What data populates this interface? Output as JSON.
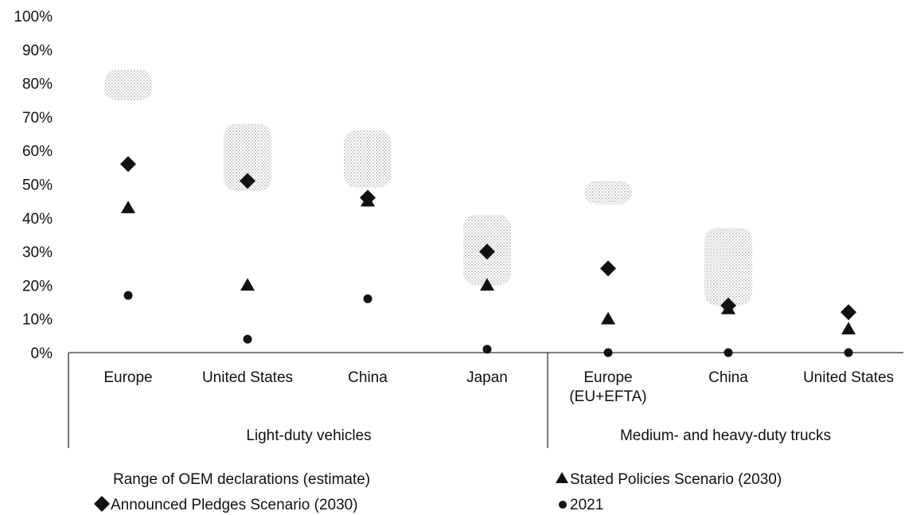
{
  "chart_data": {
    "type": "scatter",
    "yticks": [
      "0%",
      "10%",
      "20%",
      "30%",
      "40%",
      "50%",
      "60%",
      "70%",
      "80%",
      "90%",
      "100%"
    ],
    "ylim": [
      0,
      100
    ],
    "groups": [
      {
        "label": "Light-duty vehicles",
        "categories": [
          "Europe",
          "United States",
          "China",
          "Japan"
        ]
      },
      {
        "label": "Medium- and heavy-duty trucks",
        "categories": [
          "Europe\n(EU+EFTA)",
          "China",
          "United States"
        ]
      }
    ],
    "categories": [
      "Europe",
      "United States",
      "China",
      "Japan",
      "Europe (EU+EFTA)",
      "China",
      "United States"
    ],
    "series": [
      {
        "name": "Range of OEM declarations (estimate)",
        "marker": "range",
        "low": [
          75,
          48,
          49,
          20,
          44,
          14,
          null
        ],
        "high": [
          84,
          68,
          66,
          41,
          51,
          37,
          null
        ]
      },
      {
        "name": "Stated Policies Scenario (2030)",
        "marker": "triangle",
        "values": [
          43,
          20,
          45,
          20,
          10,
          13,
          7
        ]
      },
      {
        "name": "Announced Pledges Scenario (2030)",
        "marker": "diamond",
        "values": [
          56,
          51,
          46,
          30,
          25,
          14,
          12
        ]
      },
      {
        "name": "2021",
        "marker": "circle",
        "values": [
          17,
          4,
          16,
          1,
          0,
          0,
          0
        ]
      }
    ],
    "grid": false,
    "legend_position": "bottom",
    "colors": {
      "marker": "#111111",
      "range": "#9a9a9a",
      "axis": "#333333"
    }
  }
}
